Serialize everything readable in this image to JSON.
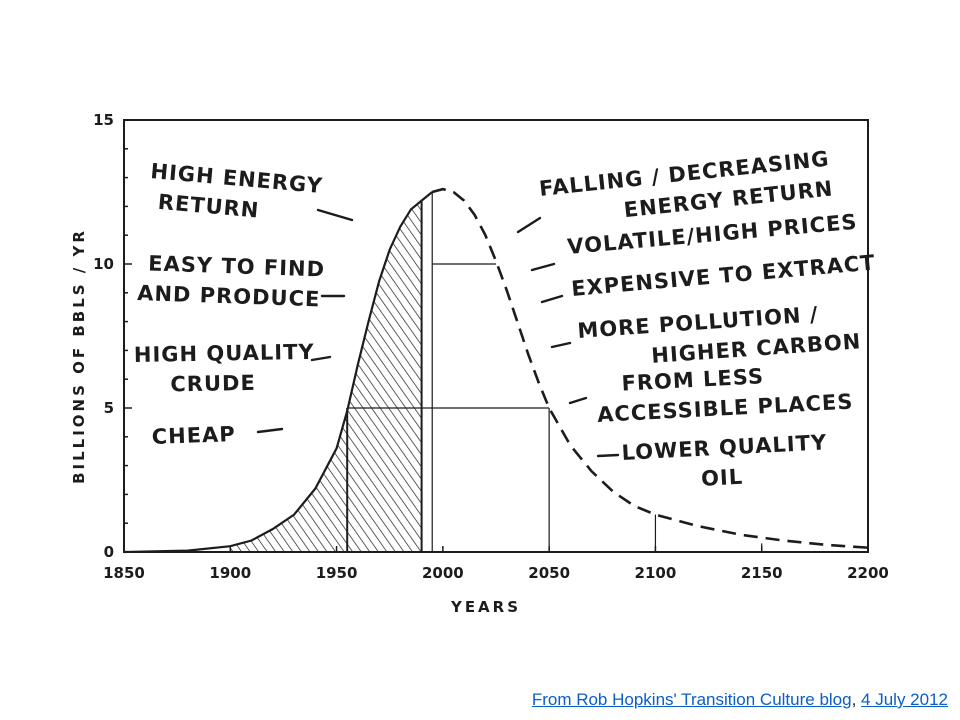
{
  "chart_data": {
    "type": "area",
    "title": "",
    "xlabel": "YEARS",
    "ylabel": "BILLIONS OF BBLS / YR",
    "xlim": [
      1850,
      2200
    ],
    "ylim": [
      0,
      15
    ],
    "x_ticks": [
      "1850",
      "1900",
      "1950",
      "2000",
      "2050",
      "2100",
      "2150",
      "2200"
    ],
    "y_ticks": [
      "0",
      "5",
      "10",
      "15"
    ],
    "grid": false,
    "series": [
      {
        "style": "solid-hatched",
        "x": [
          1850,
          1880,
          1900,
          1910,
          1920,
          1930,
          1940,
          1950,
          1955,
          1960,
          1965,
          1970,
          1975,
          1980,
          1985,
          1990
        ],
        "y": [
          0,
          0.05,
          0.2,
          0.4,
          0.8,
          1.3,
          2.2,
          3.6,
          4.9,
          6.5,
          8.0,
          9.4,
          10.5,
          11.3,
          11.9,
          12.2
        ]
      },
      {
        "style": "dashed",
        "x": [
          1995,
          2000,
          2005,
          2010,
          2015,
          2020,
          2025,
          2030,
          2035,
          2040,
          2045,
          2050,
          2060,
          2070,
          2080,
          2090,
          2100,
          2120,
          2140,
          2160,
          2180,
          2200
        ],
        "y": [
          12.5,
          12.6,
          12.5,
          12.2,
          11.7,
          11.0,
          10.1,
          9.1,
          8.0,
          6.9,
          5.9,
          5.0,
          3.7,
          2.8,
          2.1,
          1.6,
          1.3,
          0.9,
          0.6,
          0.4,
          0.25,
          0.15
        ]
      }
    ],
    "reference_lines": [
      {
        "x": 1955,
        "y_top": 5
      },
      {
        "x": 1990,
        "y_top": 12.2
      },
      {
        "x": 1995,
        "y_top": 12.5
      },
      {
        "x": 2050,
        "y_top": 5
      },
      {
        "x": 2100,
        "y_top": 1.3
      },
      {
        "x": 2150,
        "y_top": 0.3
      }
    ],
    "reference_hlines": [
      {
        "y": 10,
        "x_from": 1995,
        "x_to": 2025
      },
      {
        "y": 5,
        "x_from": 1955,
        "x_to": 2050
      }
    ],
    "annotations_left": [
      {
        "id": "high-energy",
        "lines": [
          "HIGH ENERGY",
          "RETURN"
        ]
      },
      {
        "id": "easy-find",
        "lines": [
          "EASY TO FIND",
          "AND PRODUCE"
        ]
      },
      {
        "id": "high-quality",
        "lines": [
          "HIGH QUALITY",
          "CRUDE"
        ]
      },
      {
        "id": "cheap",
        "lines": [
          "CHEAP"
        ]
      }
    ],
    "annotations_right": [
      {
        "id": "falling",
        "lines": [
          "FALLING / DECREASING",
          "ENERGY RETURN"
        ]
      },
      {
        "id": "volatile",
        "lines": [
          "VOLATILE/HIGH PRICES"
        ]
      },
      {
        "id": "expensive",
        "lines": [
          "EXPENSIVE TO EXTRACT"
        ]
      },
      {
        "id": "pollution",
        "lines": [
          "MORE POLLUTION /",
          "HIGHER CARBON"
        ]
      },
      {
        "id": "less-accessible",
        "lines": [
          "FROM LESS",
          "ACCESSIBLE PLACES"
        ]
      },
      {
        "id": "lower-quality",
        "lines": [
          "LOWER QUALITY",
          "OIL"
        ]
      }
    ]
  },
  "credit": {
    "source_text": "From Rob Hopkins' Transition Culture blog",
    "separator": ", ",
    "date_text": "4 July 2012"
  },
  "colors": {
    "ink": "#1c1c1c",
    "link": "#0b5ec8"
  }
}
